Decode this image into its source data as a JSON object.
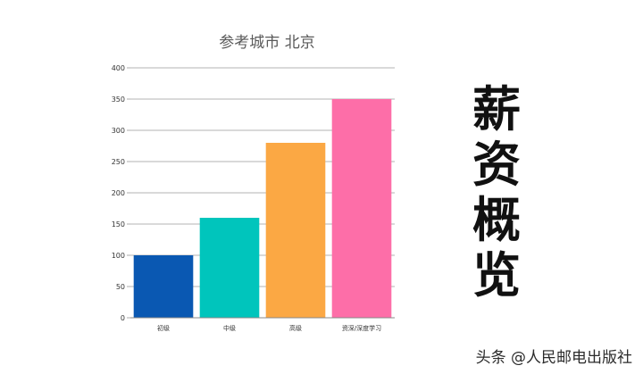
{
  "chart_data": {
    "type": "bar",
    "title": "参考城市 北京",
    "categories": [
      "初级",
      "中级",
      "高级",
      "资深/深度学习"
    ],
    "values": [
      100,
      160,
      280,
      350
    ],
    "ylim": [
      0,
      400
    ],
    "yticks": [
      0,
      50,
      100,
      150,
      200,
      250,
      300,
      350,
      400
    ],
    "grid": true,
    "legend": "none",
    "colors": [
      "#0a58b2",
      "#00c5bc",
      "#fba844",
      "#fd6ea8"
    ]
  },
  "side_title": [
    "薪",
    "资",
    "概",
    "览"
  ],
  "watermark": "头条 @人民邮电出版社"
}
